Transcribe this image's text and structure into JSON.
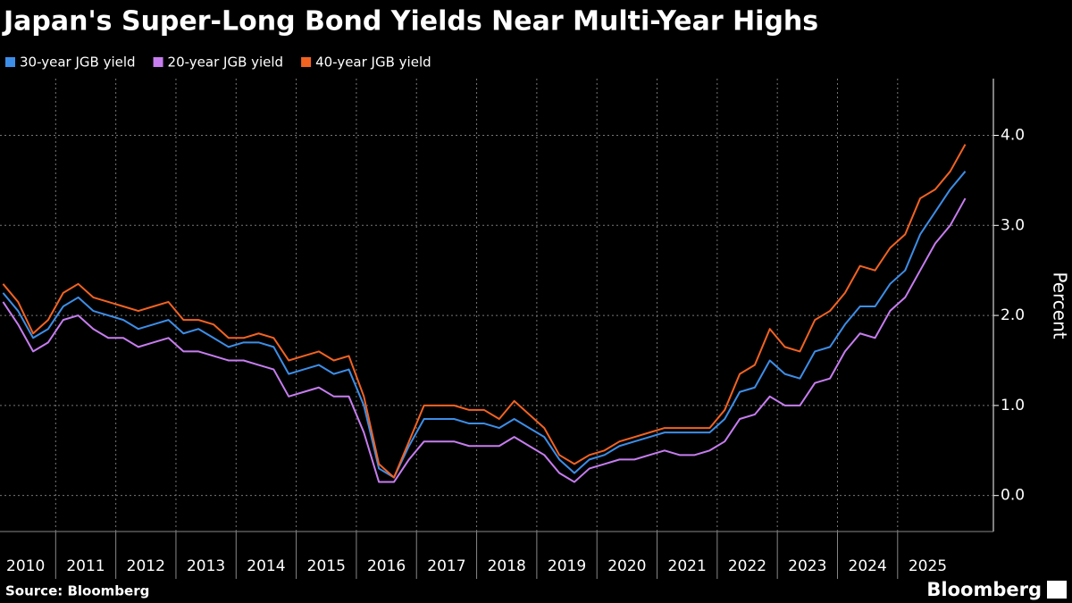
{
  "chart_data": {
    "type": "line",
    "title": "Japan's Super-Long Bond Yields Near Multi-Year Highs",
    "y_label": "Percent",
    "source": "Source: Bloomberg",
    "logo": "Bloomberg",
    "categories": [
      "2010",
      null,
      null,
      null,
      "2011",
      null,
      null,
      null,
      "2012",
      null,
      null,
      null,
      "2013",
      null,
      null,
      null,
      "2014",
      null,
      null,
      null,
      "2015",
      null,
      null,
      null,
      "2016",
      null,
      null,
      null,
      "2017",
      null,
      null,
      null,
      "2018",
      null,
      null,
      null,
      "2019",
      null,
      null,
      null,
      "2020",
      null,
      null,
      null,
      "2021",
      null,
      null,
      null,
      "2022",
      null,
      null,
      null,
      "2023",
      null,
      null,
      null,
      "2024",
      null,
      null,
      null,
      "2025",
      null,
      null,
      null,
      null
    ],
    "series": [
      {
        "name": "30-year JGB yield",
        "color": "#3d8ee8",
        "values": [
          2.25,
          2.05,
          1.75,
          1.85,
          2.1,
          2.2,
          2.05,
          2.0,
          1.95,
          1.85,
          1.9,
          1.95,
          1.8,
          1.85,
          1.75,
          1.65,
          1.7,
          1.7,
          1.65,
          1.35,
          1.4,
          1.45,
          1.35,
          1.4,
          1.0,
          0.3,
          0.2,
          0.55,
          0.85,
          0.85,
          0.85,
          0.8,
          0.8,
          0.75,
          0.85,
          0.75,
          0.65,
          0.4,
          0.25,
          0.4,
          0.45,
          0.55,
          0.6,
          0.65,
          0.7,
          0.7,
          0.7,
          0.7,
          0.85,
          1.15,
          1.2,
          1.5,
          1.35,
          1.3,
          1.6,
          1.65,
          1.9,
          2.1,
          2.1,
          2.35,
          2.5,
          2.9,
          3.15,
          3.4,
          3.6
        ]
      },
      {
        "name": "20-year JGB yield",
        "color": "#c77df0",
        "values": [
          2.15,
          1.9,
          1.6,
          1.7,
          1.95,
          2.0,
          1.85,
          1.75,
          1.75,
          1.65,
          1.7,
          1.75,
          1.6,
          1.6,
          1.55,
          1.5,
          1.5,
          1.45,
          1.4,
          1.1,
          1.15,
          1.2,
          1.1,
          1.1,
          0.7,
          0.15,
          0.15,
          0.4,
          0.6,
          0.6,
          0.6,
          0.55,
          0.55,
          0.55,
          0.65,
          0.55,
          0.45,
          0.25,
          0.15,
          0.3,
          0.35,
          0.4,
          0.4,
          0.45,
          0.5,
          0.45,
          0.45,
          0.5,
          0.6,
          0.85,
          0.9,
          1.1,
          1.0,
          1.0,
          1.25,
          1.3,
          1.6,
          1.8,
          1.75,
          2.05,
          2.2,
          2.5,
          2.8,
          3.0,
          3.3
        ]
      },
      {
        "name": "40-year JGB yield",
        "color": "#f26322",
        "values": [
          2.35,
          2.15,
          1.8,
          1.95,
          2.25,
          2.35,
          2.2,
          2.15,
          2.1,
          2.05,
          2.1,
          2.15,
          1.95,
          1.95,
          1.9,
          1.75,
          1.75,
          1.8,
          1.75,
          1.5,
          1.55,
          1.6,
          1.5,
          1.55,
          1.1,
          0.35,
          0.2,
          0.6,
          1.0,
          1.0,
          1.0,
          0.95,
          0.95,
          0.85,
          1.05,
          0.9,
          0.75,
          0.45,
          0.35,
          0.45,
          0.5,
          0.6,
          0.65,
          0.7,
          0.75,
          0.75,
          0.75,
          0.75,
          0.95,
          1.35,
          1.45,
          1.85,
          1.65,
          1.6,
          1.95,
          2.05,
          2.25,
          2.55,
          2.5,
          2.75,
          2.9,
          3.3,
          3.4,
          3.6,
          3.9
        ]
      }
    ],
    "ylim": [
      -0.4,
      4.63
    ],
    "yticks": [
      {
        "value": 0,
        "label": "0.0"
      },
      {
        "value": 1,
        "label": "1.0"
      },
      {
        "value": 2,
        "label": "2.0"
      },
      {
        "value": 3,
        "label": "3.0"
      },
      {
        "value": 4,
        "label": "4.0"
      }
    ],
    "grid": true
  }
}
